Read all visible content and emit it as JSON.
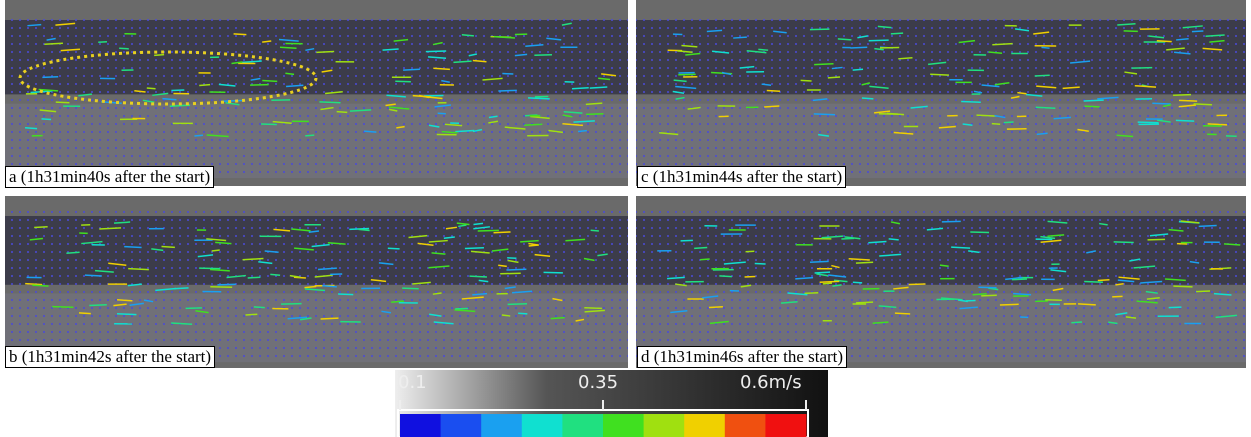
{
  "panels": [
    {
      "label": "a (1h31min40s after the start)"
    },
    {
      "label": "c (1h31min44s after the start)"
    },
    {
      "label": "b (1h31min42s after the start)"
    },
    {
      "label": "d (1h31min46s after the start)"
    }
  ],
  "colorbar": {
    "ticks": [
      "0.1",
      "0.35",
      "0.6m/s"
    ],
    "colors": [
      "#1010e0",
      "#1a4ef0",
      "#1aa0f0",
      "#10e0d0",
      "#20e080",
      "#40e020",
      "#a0e010",
      "#f0d000",
      "#f05010",
      "#f01010"
    ]
  }
}
